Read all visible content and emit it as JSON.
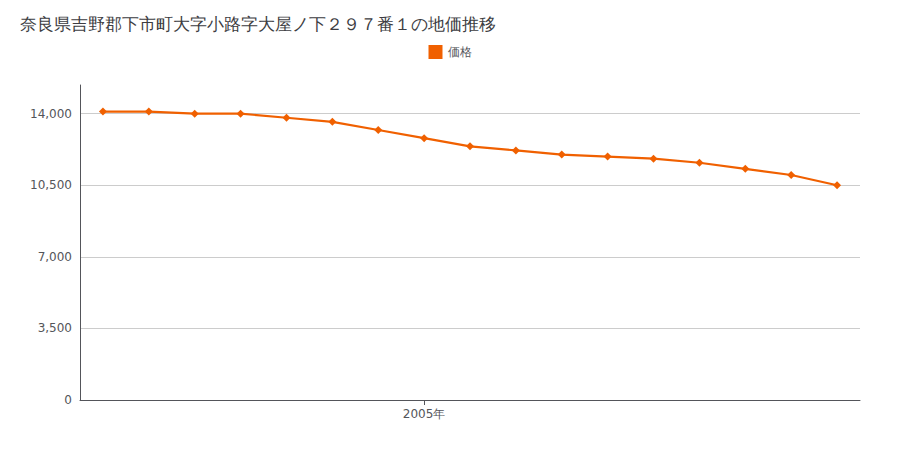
{
  "chart_data": {
    "type": "line",
    "title": "奈良県吉野郡下市町大字小路字大屋ノ下２９７番１の地価推移",
    "x": [
      1998,
      1999,
      2000,
      2001,
      2002,
      2003,
      2004,
      2005,
      2006,
      2007,
      2008,
      2009,
      2010,
      2011,
      2012,
      2013,
      2014
    ],
    "series": [
      {
        "name": "価格",
        "color": "#f06000",
        "marker": "diamond",
        "values": [
          14100,
          14100,
          14000,
          14000,
          13800,
          13600,
          13200,
          12800,
          12400,
          12200,
          12000,
          11900,
          11800,
          11600,
          11300,
          11000,
          10500
        ]
      }
    ],
    "xlim": [
      1997.5,
      2014.5
    ],
    "xticks": [
      {
        "value": 2005,
        "label": "2005年"
      }
    ],
    "ylim": [
      0,
      15400
    ],
    "yticks": [
      0,
      {
        "value": 3500,
        "label": "3,500"
      },
      {
        "value": 7000,
        "label": "7,000"
      },
      {
        "value": 10500,
        "label": "10,500"
      },
      {
        "value": 14000,
        "label": "14,000"
      }
    ],
    "grid": true,
    "legend": "top"
  }
}
